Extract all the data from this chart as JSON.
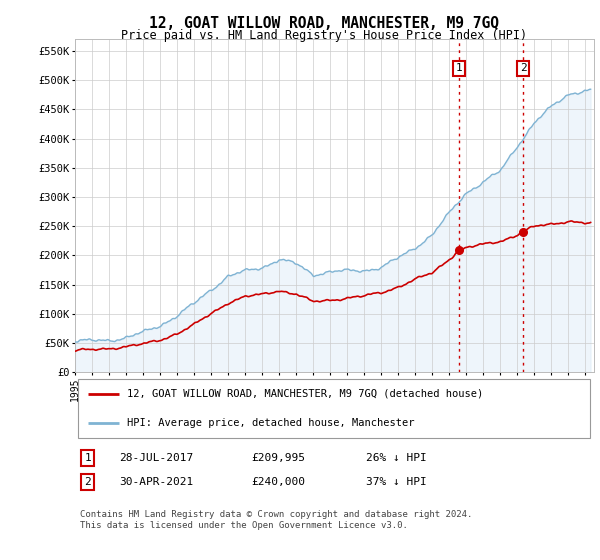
{
  "title": "12, GOAT WILLOW ROAD, MANCHESTER, M9 7GQ",
  "subtitle": "Price paid vs. HM Land Registry's House Price Index (HPI)",
  "xlim_start": 1995.0,
  "xlim_end": 2025.5,
  "ylim": [
    0,
    570000
  ],
  "yticks": [
    0,
    50000,
    100000,
    150000,
    200000,
    250000,
    300000,
    350000,
    400000,
    450000,
    500000,
    550000
  ],
  "ytick_labels": [
    "£0",
    "£50K",
    "£100K",
    "£150K",
    "£200K",
    "£250K",
    "£300K",
    "£350K",
    "£400K",
    "£450K",
    "£500K",
    "£550K"
  ],
  "hpi_color": "#7fb3d3",
  "hpi_fill_color": "#d6e8f5",
  "price_color": "#cc0000",
  "marker1_date": 2017.57,
  "marker1_price": 209995,
  "marker1_label": "1",
  "marker2_date": 2021.33,
  "marker2_price": 240000,
  "marker2_label": "2",
  "vline_color": "#cc0000",
  "vline_style": ":",
  "legend_entry1": "12, GOAT WILLOW ROAD, MANCHESTER, M9 7GQ (detached house)",
  "legend_entry2": "HPI: Average price, detached house, Manchester",
  "table_row1": [
    "1",
    "28-JUL-2017",
    "£209,995",
    "26% ↓ HPI"
  ],
  "table_row2": [
    "2",
    "30-APR-2021",
    "£240,000",
    "37% ↓ HPI"
  ],
  "footer": "Contains HM Land Registry data © Crown copyright and database right 2024.\nThis data is licensed under the Open Government Licence v3.0.",
  "background_color": "#ffffff",
  "plot_bg_color": "#ffffff",
  "grid_color": "#cccccc",
  "hpi_knots": [
    1995,
    1996,
    1997,
    1998,
    1999,
    2000,
    2001,
    2002,
    2003,
    2004,
    2005,
    2006,
    2007,
    2008,
    2009,
    2010,
    2011,
    2012,
    2013,
    2014,
    2015,
    2016,
    2017,
    2018,
    2019,
    2020,
    2021,
    2022,
    2023,
    2024,
    2025
  ],
  "hpi_vals": [
    52000,
    54000,
    57000,
    62000,
    70000,
    80000,
    95000,
    115000,
    140000,
    165000,
    175000,
    182000,
    195000,
    185000,
    165000,
    170000,
    172000,
    175000,
    182000,
    198000,
    215000,
    235000,
    270000,
    305000,
    325000,
    345000,
    390000,
    430000,
    455000,
    475000,
    480000
  ],
  "price_knots": [
    1995,
    1996,
    1997,
    1998,
    1999,
    2000,
    2001,
    2002,
    2003,
    2004,
    2005,
    2006,
    2007,
    2008,
    2009,
    2010,
    2011,
    2012,
    2013,
    2014,
    2015,
    2016,
    2017,
    2017.57,
    2018,
    2019,
    2020,
    2021,
    2021.33,
    2022,
    2023,
    2024,
    2025
  ],
  "price_vals": [
    36000,
    37000,
    40000,
    44000,
    49000,
    57000,
    68000,
    82000,
    100000,
    118000,
    128000,
    132000,
    140000,
    135000,
    122000,
    125000,
    128000,
    130000,
    135000,
    145000,
    158000,
    170000,
    195000,
    209995,
    215000,
    220000,
    225000,
    235000,
    240000,
    248000,
    252000,
    258000,
    255000
  ]
}
